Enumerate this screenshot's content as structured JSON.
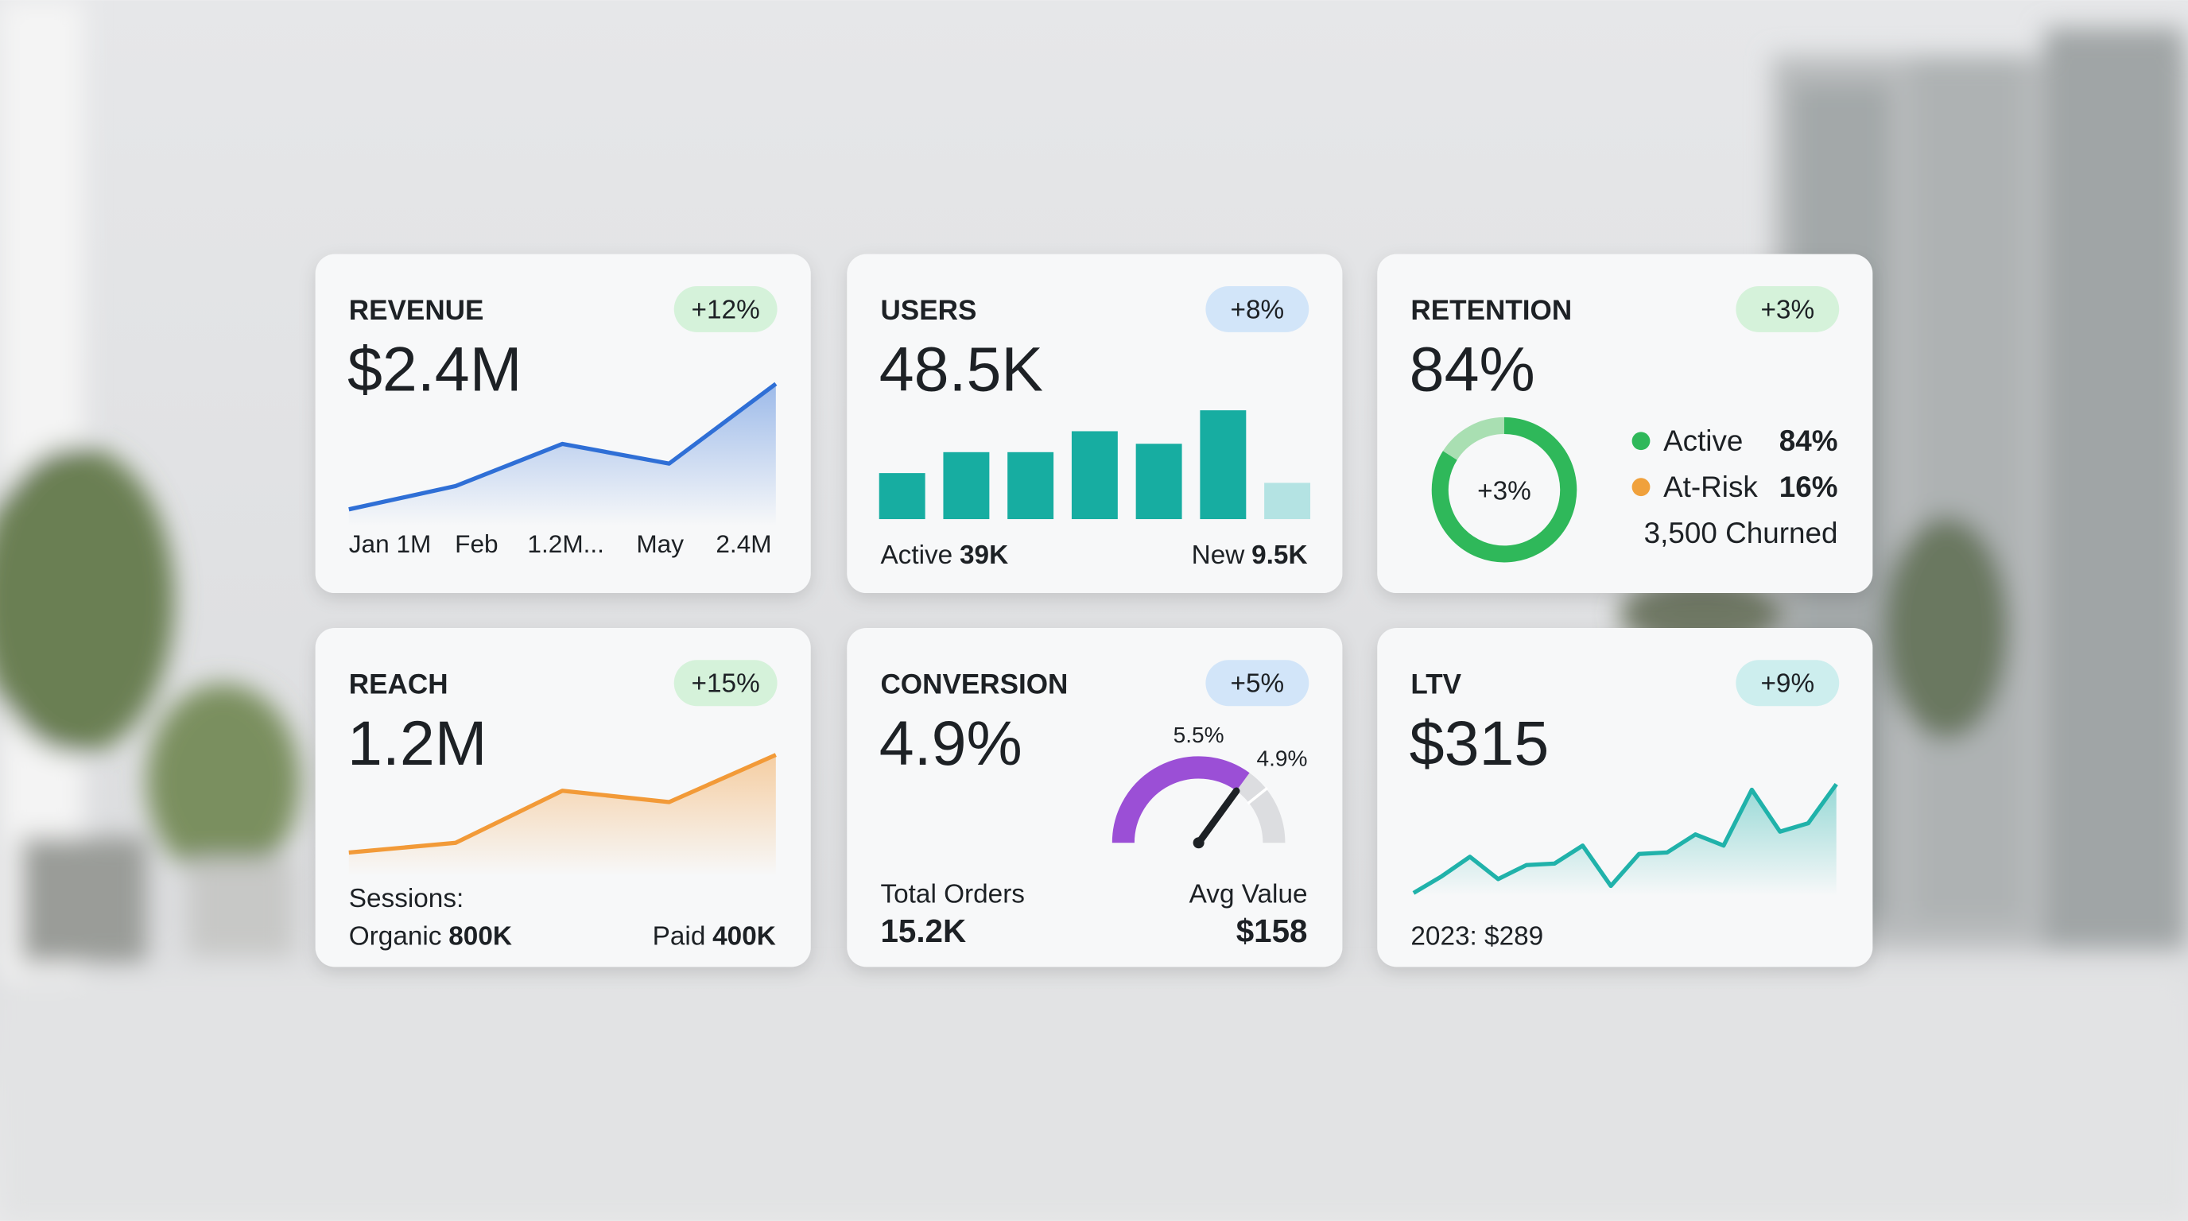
{
  "chart_data": [
    {
      "type": "area",
      "title": "REVENUE",
      "headline": "$2.4M",
      "badge": "+12%",
      "badge_style": "green",
      "color": "#2f6fd6",
      "values": [
        1.0,
        1.26,
        1.73,
        1.51,
        2.4
      ],
      "labels": [
        "Jan 1M",
        "Feb",
        "1.2M...",
        "May",
        "2.4M"
      ]
    },
    {
      "type": "bar",
      "title": "USERS",
      "headline": "48.5K",
      "badge": "+8%",
      "badge_style": "blue",
      "color": "#17ada1",
      "last_color": "#b4e3e3",
      "values": [
        33,
        48,
        48,
        63,
        54,
        78,
        26
      ],
      "footer": [
        {
          "label": "Active",
          "value": "39K"
        },
        {
          "label": "New",
          "value": "9.5K"
        }
      ]
    },
    {
      "type": "donut",
      "title": "RETENTION",
      "headline": "84%",
      "badge": "+3%",
      "badge_style": "green",
      "center_label": "+3%",
      "series": [
        {
          "name": "Active",
          "color": "#2fb85a",
          "value": 84,
          "value_label": "84%"
        },
        {
          "name": "At-Risk",
          "color": "#f0a13c",
          "ring_color": "#a9dfb2",
          "value": 16,
          "value_label": "16%"
        }
      ],
      "note": "3,500 Churned"
    },
    {
      "type": "area",
      "title": "REACH",
      "headline": "1.2M",
      "badge": "+15%",
      "badge_style": "green",
      "color": "#f29a38",
      "values": [
        0.6,
        0.66,
        0.98,
        0.91,
        1.2
      ],
      "caption": "Sessions:",
      "footer": [
        {
          "label": "Organic",
          "value": "800K"
        },
        {
          "label": "Paid",
          "value": "400K"
        }
      ]
    },
    {
      "type": "gauge",
      "title": "CONVERSION",
      "headline": "4.9%",
      "badge": "+5%",
      "badge_style": "blue",
      "color": "#9b4fd6",
      "value": 4.9,
      "value_label": "4.9%",
      "target": 5.5,
      "target_label": "5.5%",
      "footer": [
        {
          "label": "Total Orders",
          "value": "15.2K"
        },
        {
          "label": "Avg Value",
          "value": "$158"
        }
      ]
    },
    {
      "type": "area",
      "title": "LTV",
      "headline": "$315",
      "badge": "+9%",
      "badge_style": "teal",
      "color": "#20b2aa",
      "values": [
        287.7,
        291.9,
        296.8,
        291.2,
        294.7,
        295.1,
        299.6,
        289.5,
        297.5,
        297.9,
        302.4,
        299.6,
        313.6,
        303.1,
        305.2,
        315.0
      ],
      "note": "2023: $289"
    }
  ]
}
